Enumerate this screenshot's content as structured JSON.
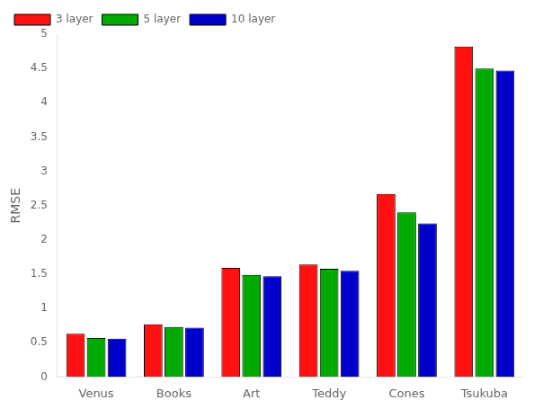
{
  "chart_data": {
    "type": "bar",
    "categories": [
      "Venus",
      "Books",
      "Art",
      "Teddy",
      "Cones",
      "Tsukuba"
    ],
    "series": [
      {
        "name": "3 layer",
        "color": "#ff1111",
        "values": [
          0.63,
          0.77,
          1.59,
          1.64,
          2.67,
          4.82
        ]
      },
      {
        "name": "5 layer",
        "color": "#00aa00",
        "values": [
          0.57,
          0.73,
          1.49,
          1.58,
          2.4,
          4.5
        ]
      },
      {
        "name": "10 layer",
        "color": "#0000cc",
        "values": [
          0.56,
          0.72,
          1.47,
          1.55,
          2.24,
          4.47
        ]
      }
    ],
    "ylabel": "RMSE",
    "ylim": [
      0,
      5
    ],
    "yticks": [
      0,
      0.5,
      1,
      1.5,
      2,
      2.5,
      3,
      3.5,
      4,
      4.5,
      5
    ],
    "grid": false,
    "legend": "upper left"
  }
}
